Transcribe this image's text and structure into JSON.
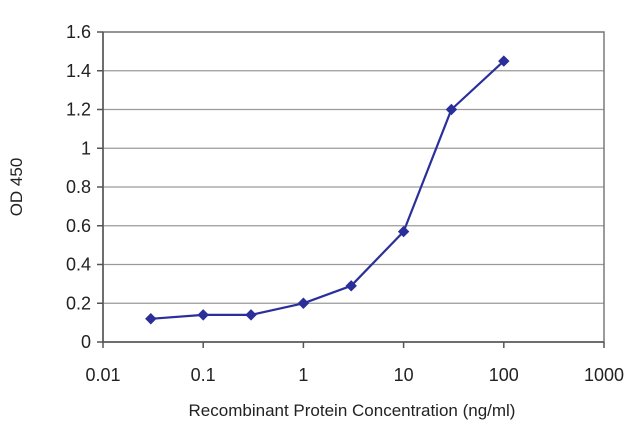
{
  "chart_data": {
    "type": "line",
    "title": "",
    "xlabel": "Recombinant Protein Concentration (ng/ml)",
    "ylabel": "OD 450",
    "x_scale": "log",
    "xlim": [
      0.01,
      1000
    ],
    "ylim": [
      0,
      1.6
    ],
    "x_tick_labels": [
      "0.01",
      "0.1",
      "1",
      "10",
      "100",
      "1000"
    ],
    "y_tick_labels": [
      "0",
      "0.2",
      "0.4",
      "0.6",
      "0.8",
      "1",
      "1.2",
      "1.4",
      "1.6"
    ],
    "grid": "horizontal",
    "series": [
      {
        "color": "#2b2f9a",
        "marker": "diamond",
        "x": [
          0.03,
          0.1,
          0.3,
          1,
          3,
          10,
          30,
          100
        ],
        "y": [
          0.12,
          0.14,
          0.14,
          0.2,
          0.29,
          0.57,
          1.2,
          1.45
        ]
      }
    ]
  }
}
